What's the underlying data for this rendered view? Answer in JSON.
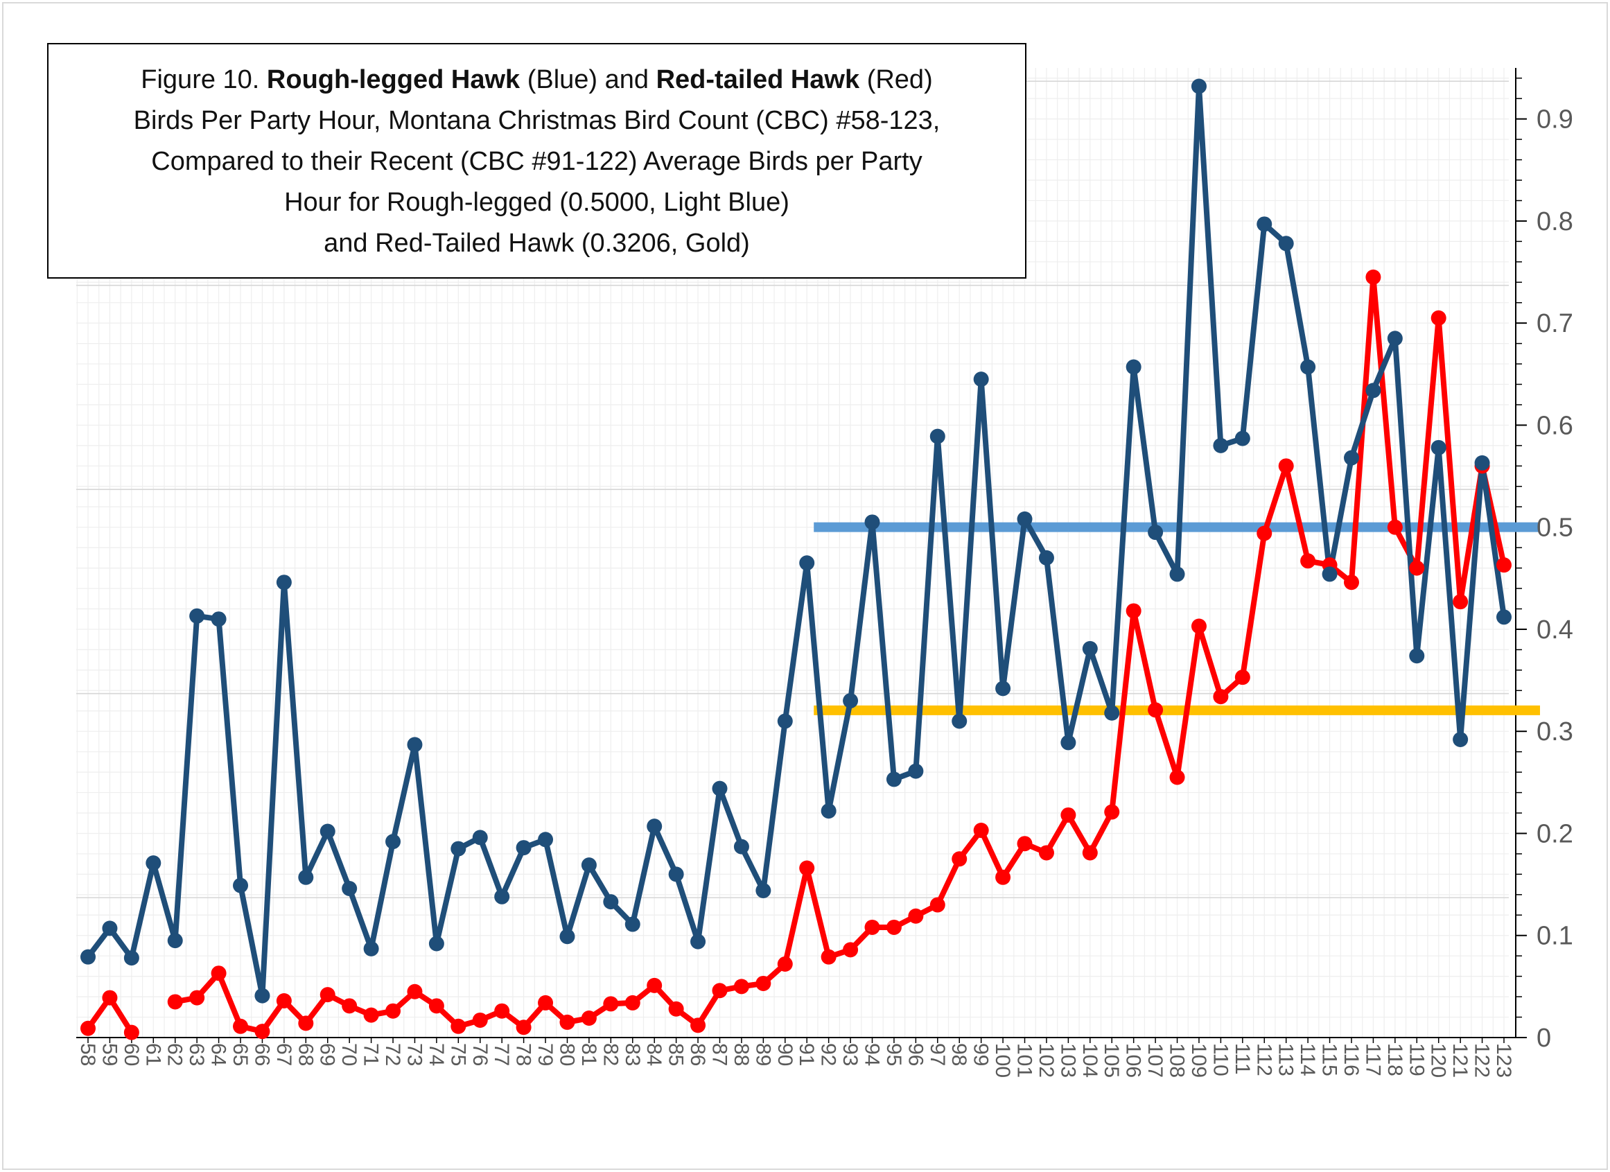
{
  "chart_data": {
    "type": "line",
    "title_lines": [
      [
        "Figure 10. ",
        "Rough-legged Hawk",
        " (Blue) and ",
        "Red-tailed Hawk",
        " (Red)"
      ],
      "Birds Per Party Hour, Montana Christmas Bird Count (CBC) #58-123,",
      "Compared to their Recent (CBC #91-122) Average Birds per Party",
      "Hour for Rough-legged (0.5000, Light Blue)",
      "and Red-Tailed Hawk (0.3206, Gold)"
    ],
    "x": [
      58,
      59,
      60,
      61,
      62,
      63,
      64,
      65,
      66,
      67,
      68,
      69,
      70,
      71,
      72,
      73,
      74,
      75,
      76,
      77,
      78,
      79,
      80,
      81,
      82,
      83,
      84,
      85,
      86,
      87,
      88,
      89,
      90,
      91,
      92,
      93,
      94,
      95,
      96,
      97,
      98,
      99,
      100,
      101,
      102,
      103,
      104,
      105,
      106,
      107,
      108,
      109,
      110,
      111,
      112,
      113,
      114,
      115,
      116,
      117,
      118,
      119,
      120,
      121,
      122,
      123
    ],
    "ylim": [
      0,
      0.95
    ],
    "yticks": [
      0,
      0.1,
      0.2,
      0.3,
      0.4,
      0.5,
      0.6,
      0.7,
      0.8,
      0.9
    ],
    "ytick_labels": [
      "0",
      "0.1",
      "0.2",
      "0.3",
      "0.4",
      "0.5",
      "0.6",
      "0.7",
      "0.8",
      "0.9"
    ],
    "series": [
      {
        "name": "Rough-legged Hawk",
        "color": "#1F4E79",
        "values": [
          0.079,
          0.107,
          0.078,
          0.171,
          0.095,
          0.413,
          0.41,
          0.149,
          0.041,
          0.446,
          0.157,
          0.202,
          0.146,
          0.087,
          0.192,
          0.287,
          0.092,
          0.185,
          0.196,
          0.138,
          0.186,
          0.194,
          0.099,
          0.169,
          0.133,
          0.111,
          0.207,
          0.16,
          0.094,
          0.244,
          0.187,
          0.144,
          0.31,
          0.465,
          0.222,
          0.33,
          0.505,
          0.253,
          0.261,
          0.589,
          0.31,
          0.645,
          0.342,
          0.508,
          0.47,
          0.289,
          0.381,
          0.318,
          0.657,
          0.495,
          0.454,
          0.932,
          0.58,
          0.587,
          0.797,
          0.778,
          0.657,
          0.454,
          0.568,
          0.634,
          0.685,
          0.374,
          0.578,
          0.292,
          0.563,
          0.412
        ]
      },
      {
        "name": "Red-tailed Hawk",
        "color": "#FF0000",
        "values": [
          0.009,
          0.039,
          0.005,
          null,
          0.035,
          0.039,
          0.063,
          0.011,
          0.006,
          0.036,
          0.014,
          0.042,
          0.031,
          0.022,
          0.026,
          0.045,
          0.031,
          0.011,
          0.017,
          0.026,
          0.01,
          0.034,
          0.015,
          0.019,
          0.033,
          0.034,
          0.051,
          0.028,
          0.012,
          0.046,
          0.05,
          0.053,
          0.072,
          0.166,
          0.079,
          0.086,
          0.108,
          0.108,
          0.119,
          0.13,
          0.175,
          0.203,
          0.157,
          0.19,
          0.181,
          0.218,
          0.181,
          0.221,
          0.418,
          0.321,
          0.255,
          0.403,
          0.334,
          0.353,
          0.494,
          0.56,
          0.467,
          0.463,
          0.446,
          0.745,
          0.5,
          0.46,
          0.705,
          0.427,
          0.56,
          0.463
        ]
      }
    ],
    "averages": [
      {
        "name": "Rough-legged recent average",
        "value": 0.5,
        "color": "#5B9BD5",
        "x_start": 91,
        "x_end": 123
      },
      {
        "name": "Red-tailed recent average",
        "value": 0.3206,
        "color": "#FFC000",
        "x_start": 91,
        "x_end": 123
      }
    ]
  }
}
